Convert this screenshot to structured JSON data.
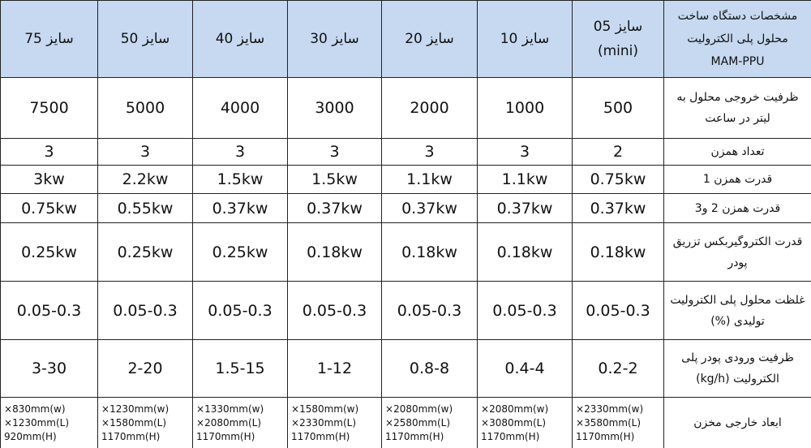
{
  "table": {
    "header": [
      [
        "مشخصات دستگاه ساخت",
        "محلول پلی الکترولیت",
        "MAM-PPU"
      ],
      [
        "سایز 05",
        "(mini)"
      ],
      "سایز 10",
      "سایز 20",
      "سایز 30",
      "سایز 40",
      "سایز 50",
      "سایز 75"
    ],
    "rows": [
      [
        "ظرفیت خروجی محلول به لیتر در ساعت",
        "500",
        "1000",
        "2000",
        "3000",
        "4000",
        "5000",
        "7500"
      ],
      [
        "تعداد همزن",
        "2",
        "3",
        "3",
        "3",
        "3",
        "3",
        "3"
      ],
      [
        "قدرت همزن 1",
        "0.75kw",
        "1.1kw",
        "1.1kw",
        "1.5kw",
        "1.5kw",
        "2.2kw",
        "3kw"
      ],
      [
        "قدرت همزن 2 و3",
        "0.37kw",
        "0.37kw",
        "0.37kw",
        "0.37kw",
        "0.37kw",
        "0.55kw",
        "0.75kw"
      ],
      [
        "قدرت الکتروگیربکس تزریق پودر",
        "0.18kw",
        "0.18kw",
        "0.18kw",
        "0.18kw",
        "0.25kw",
        "0.25kw",
        "0.25kw"
      ],
      [
        "غلظت محلول پلی الکترولیت تولیدی (%)",
        "0.05-0.3",
        "0.05-0.3",
        "0.05-0.3",
        "0.05-0.3",
        "0.05-0.3",
        "0.05-0.3",
        "0.05-0.3"
      ],
      [
        "ظرفیت ورودی پودر پلی الکترولیت (kg/h)",
        "0.2-2",
        "0.4-4",
        "0.8-8",
        "1-12",
        "1.5-15",
        "2-20",
        "3-30"
      ],
      [
        "ابعاد خارجی مخزن",
        [
          "2330mm(w)×",
          "3580mm(L)×",
          "1170mm(H)"
        ],
        [
          "2080mm(w)×",
          "3080mm(L)×",
          "1170mm(H)"
        ],
        [
          "2080mm(w)×",
          "2580mm(L)×",
          "1170mm(H)"
        ],
        [
          "1580mm(w)×",
          "2330mm(L)×",
          "1170mm(H)"
        ],
        [
          "1330mm(w)×",
          "2080mm(L)×",
          "1170mm(H)"
        ],
        [
          "1230mm(w)×",
          "1580mm(L)×",
          "1170mm(H)"
        ],
        [
          "830mm(w)×",
          "1230mm(L)×",
          "920mm(H)"
        ]
      ]
    ]
  }
}
